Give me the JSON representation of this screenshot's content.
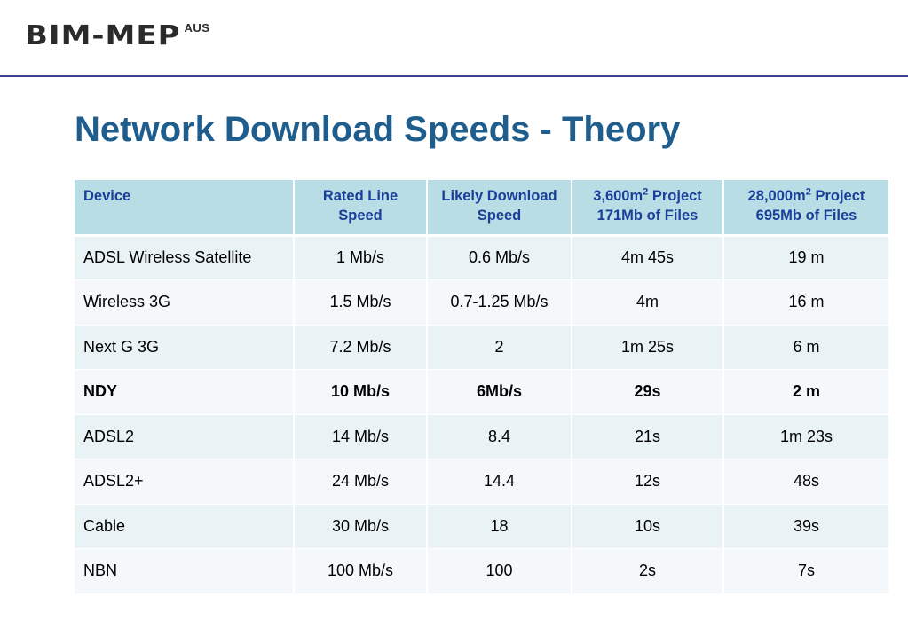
{
  "logo": {
    "text": "BIM-MEP",
    "superscript": "AUS"
  },
  "title": "Network Download Speeds - Theory",
  "table": {
    "headers": [
      {
        "line1": "Device"
      },
      {
        "line1": "Rated Line",
        "line2": "Speed"
      },
      {
        "line1": "Likely Download",
        "line2": "Speed"
      },
      {
        "line1_pre": "3,600m",
        "sup": "2",
        "line1_post": " Project",
        "line2": "171Mb of Files"
      },
      {
        "line1_pre": "28,000m",
        "sup": "2",
        "line1_post": " Project",
        "line2": "695Mb of Files"
      }
    ],
    "rows": [
      [
        "ADSL Wireless Satellite",
        "1 Mb/s",
        "0.6 Mb/s",
        "4m 45s",
        "19 m"
      ],
      [
        "Wireless 3G",
        "1.5 Mb/s",
        "0.7-1.25 Mb/s",
        "4m",
        "16 m"
      ],
      [
        "Next G 3G",
        "7.2 Mb/s",
        "2",
        "1m 25s",
        "6 m"
      ],
      [
        "NDY",
        "10 Mb/s",
        "6Mb/s",
        "29s",
        "2 m"
      ],
      [
        "ADSL2",
        "14 Mb/s",
        "8.4",
        "21s",
        "1m 23s"
      ],
      [
        "ADSL2+",
        "24 Mb/s",
        "14.4",
        "12s",
        "48s"
      ],
      [
        "Cable",
        "30 Mb/s",
        "18",
        "10s",
        "39s"
      ],
      [
        "NBN",
        "100 Mb/s",
        "100",
        "2s",
        "7s"
      ]
    ],
    "bold_row_index": 3
  },
  "colors": {
    "title": "#1f5d8c",
    "header_bg": "#b8dde4",
    "header_text": "#1a3f99",
    "rule": "#3b3f8c"
  }
}
